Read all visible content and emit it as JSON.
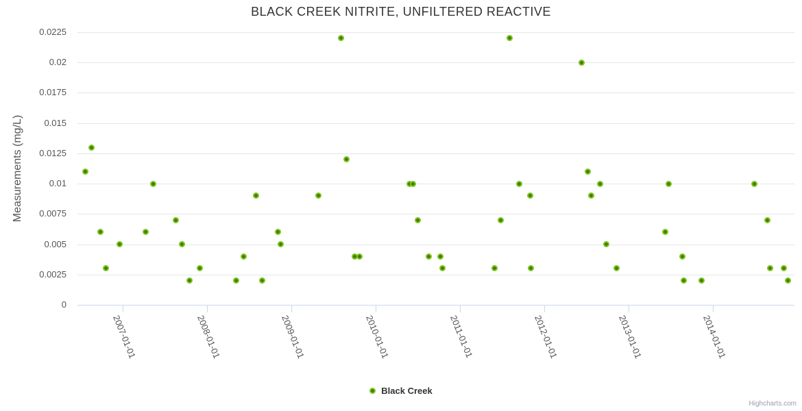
{
  "title": "BLACK CREEK NITRITE, UNFILTERED REACTIVE",
  "legend": {
    "series_label": "Black Creek"
  },
  "credit": "Highcharts.com",
  "colors": {
    "marker_outer": "#7fc31c",
    "marker_inner": "#3a7a0a",
    "grid": "#e6e6e6",
    "axis_line": "#ccd6eb",
    "title_text": "#333333",
    "label_text": "#555555",
    "credit_text": "#9a9ab0"
  },
  "chart_data": {
    "type": "scatter",
    "title": "BLACK CREEK NITRITE, UNFILTERED REACTIVE",
    "xlabel": "",
    "ylabel": "Measurements (mg/L)",
    "ylim": [
      0,
      0.0225
    ],
    "xlim": [
      2006.46,
      2014.97
    ],
    "x_unit": "decimal_year",
    "grid": "horizontal",
    "legend_position": "bottom-center",
    "y_ticks": [
      {
        "value": 0,
        "label": "0"
      },
      {
        "value": 0.0025,
        "label": "0.0025"
      },
      {
        "value": 0.005,
        "label": "0.005"
      },
      {
        "value": 0.0075,
        "label": "0.0075"
      },
      {
        "value": 0.01,
        "label": "0.01"
      },
      {
        "value": 0.0125,
        "label": "0.0125"
      },
      {
        "value": 0.015,
        "label": "0.015"
      },
      {
        "value": 0.0175,
        "label": "0.0175"
      },
      {
        "value": 0.02,
        "label": "0.02"
      },
      {
        "value": 0.0225,
        "label": "0.0225"
      }
    ],
    "x_ticks": [
      {
        "value": 2007,
        "label": "2007-01-01"
      },
      {
        "value": 2008,
        "label": "2008-01-01"
      },
      {
        "value": 2009,
        "label": "2009-01-01"
      },
      {
        "value": 2010,
        "label": "2010-01-01"
      },
      {
        "value": 2011,
        "label": "2011-01-01"
      },
      {
        "value": 2012,
        "label": "2012-01-01"
      },
      {
        "value": 2013,
        "label": "2013-01-01"
      },
      {
        "value": 2014,
        "label": "2014-01-01"
      }
    ],
    "series": [
      {
        "name": "Black Creek",
        "marker": {
          "outer": "#7fc31c",
          "inner": "#3a7a0a"
        },
        "points": [
          [
            2006.55,
            0.011
          ],
          [
            2006.63,
            0.013
          ],
          [
            2006.73,
            0.006
          ],
          [
            2006.8,
            0.003
          ],
          [
            2006.96,
            0.005
          ],
          [
            2007.27,
            0.006
          ],
          [
            2007.36,
            0.01
          ],
          [
            2007.63,
            0.007
          ],
          [
            2007.7,
            0.005
          ],
          [
            2007.79,
            0.002
          ],
          [
            2007.91,
            0.003
          ],
          [
            2008.34,
            0.002
          ],
          [
            2008.43,
            0.004
          ],
          [
            2008.58,
            0.009
          ],
          [
            2008.65,
            0.002
          ],
          [
            2008.84,
            0.006
          ],
          [
            2008.87,
            0.005
          ],
          [
            2009.32,
            0.009
          ],
          [
            2009.59,
            0.022
          ],
          [
            2009.65,
            0.012
          ],
          [
            2009.75,
            0.004
          ],
          [
            2009.81,
            0.004
          ],
          [
            2010.4,
            0.01
          ],
          [
            2010.44,
            0.01
          ],
          [
            2010.5,
            0.007
          ],
          [
            2010.63,
            0.004
          ],
          [
            2010.77,
            0.004
          ],
          [
            2010.79,
            0.003
          ],
          [
            2011.41,
            0.003
          ],
          [
            2011.48,
            0.007
          ],
          [
            2011.59,
            0.022
          ],
          [
            2011.7,
            0.01
          ],
          [
            2011.83,
            0.009
          ],
          [
            2011.84,
            0.003
          ],
          [
            2012.44,
            0.02
          ],
          [
            2012.52,
            0.011
          ],
          [
            2012.56,
            0.009
          ],
          [
            2012.66,
            0.01
          ],
          [
            2012.74,
            0.005
          ],
          [
            2012.86,
            0.003
          ],
          [
            2013.44,
            0.006
          ],
          [
            2013.48,
            0.01
          ],
          [
            2013.64,
            0.004
          ],
          [
            2013.66,
            0.002
          ],
          [
            2013.87,
            0.002
          ],
          [
            2014.49,
            0.01
          ],
          [
            2014.65,
            0.007
          ],
          [
            2014.68,
            0.003
          ],
          [
            2014.84,
            0.003
          ],
          [
            2014.89,
            0.002
          ]
        ]
      }
    ]
  }
}
